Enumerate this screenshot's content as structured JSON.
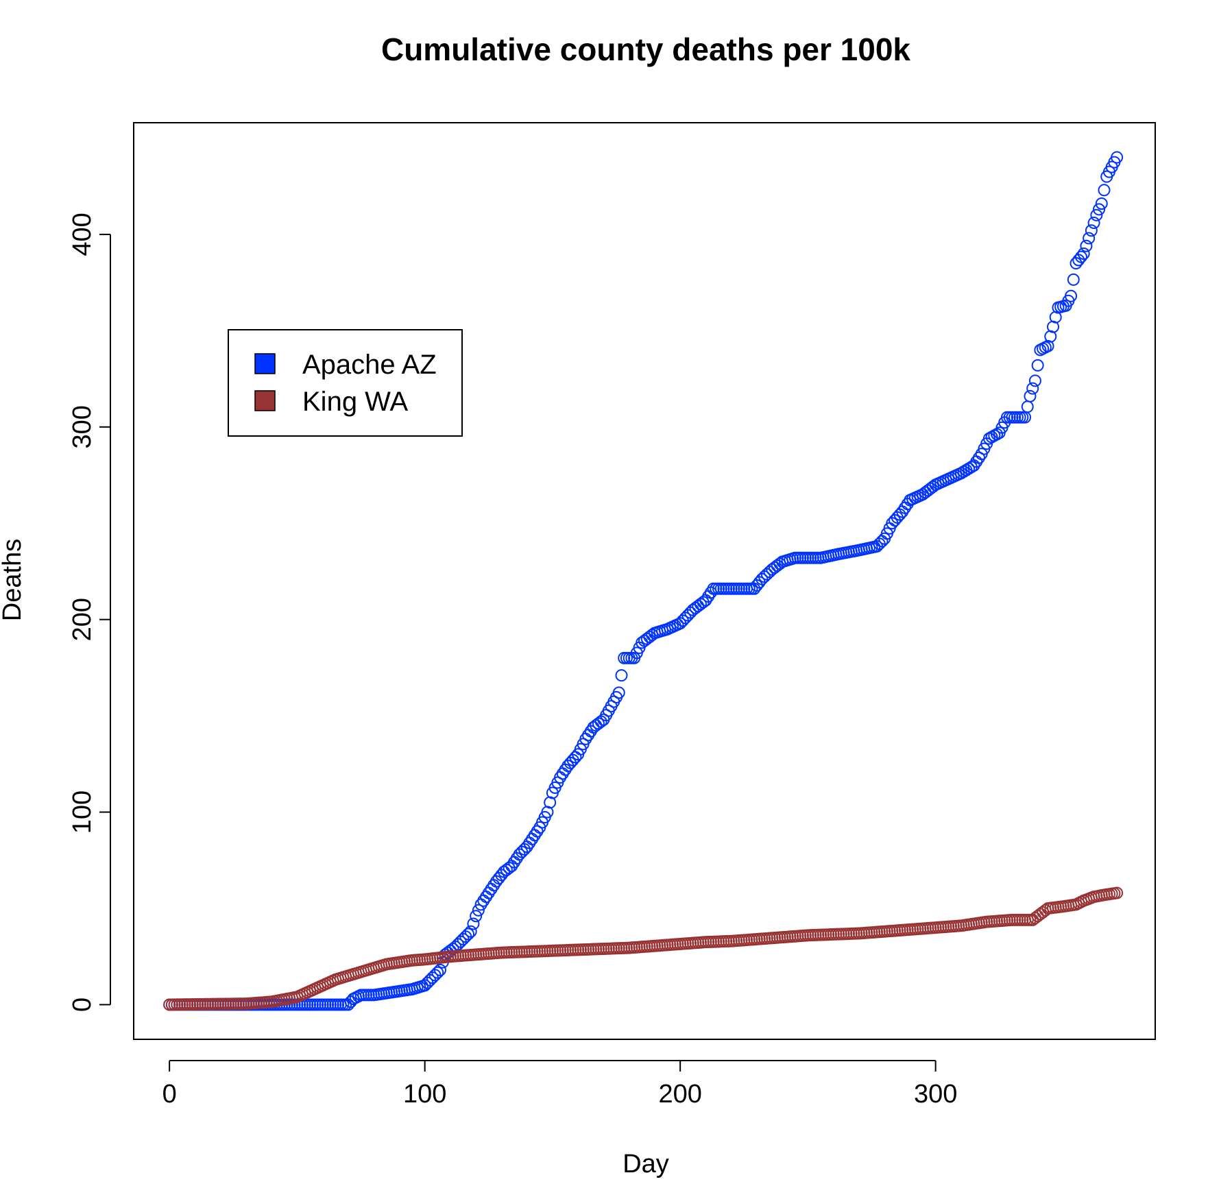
{
  "chart_data": {
    "type": "scatter",
    "title": "Cumulative county deaths per 100k",
    "xlabel": "Day",
    "ylabel": "Deaths",
    "xlim": [
      -14,
      386
    ],
    "ylim": [
      -18,
      458
    ],
    "xticks": [
      0,
      100,
      200,
      300
    ],
    "yticks": [
      0,
      100,
      200,
      300,
      400
    ],
    "grid": false,
    "legend_position": "upper-left",
    "series": [
      {
        "name": "Apache AZ",
        "color": "#0033ff",
        "points": [
          [
            0,
            0
          ],
          [
            70,
            0
          ],
          [
            72,
            3
          ],
          [
            75,
            5
          ],
          [
            80,
            5
          ],
          [
            85,
            6
          ],
          [
            90,
            7
          ],
          [
            95,
            8
          ],
          [
            100,
            10
          ],
          [
            103,
            14
          ],
          [
            106,
            18
          ],
          [
            108,
            26
          ],
          [
            112,
            30
          ],
          [
            115,
            34
          ],
          [
            118,
            38
          ],
          [
            120,
            46
          ],
          [
            122,
            52
          ],
          [
            125,
            58
          ],
          [
            128,
            64
          ],
          [
            131,
            69
          ],
          [
            134,
            72
          ],
          [
            137,
            78
          ],
          [
            140,
            82
          ],
          [
            143,
            88
          ],
          [
            145,
            92
          ],
          [
            148,
            100
          ],
          [
            150,
            110
          ],
          [
            153,
            118
          ],
          [
            156,
            124
          ],
          [
            160,
            130
          ],
          [
            163,
            138
          ],
          [
            166,
            144
          ],
          [
            170,
            148
          ],
          [
            173,
            155
          ],
          [
            176,
            162
          ],
          [
            178,
            180
          ],
          [
            182,
            180
          ],
          [
            185,
            188
          ],
          [
            190,
            193
          ],
          [
            195,
            195
          ],
          [
            200,
            198
          ],
          [
            205,
            205
          ],
          [
            210,
            210
          ],
          [
            213,
            216
          ],
          [
            220,
            216
          ],
          [
            229,
            216
          ],
          [
            232,
            221
          ],
          [
            236,
            226
          ],
          [
            240,
            230
          ],
          [
            245,
            232
          ],
          [
            255,
            232
          ],
          [
            262,
            234
          ],
          [
            270,
            236
          ],
          [
            277,
            238
          ],
          [
            280,
            242
          ],
          [
            283,
            250
          ],
          [
            287,
            256
          ],
          [
            290,
            262
          ],
          [
            295,
            265
          ],
          [
            300,
            270
          ],
          [
            305,
            273
          ],
          [
            310,
            276
          ],
          [
            315,
            280
          ],
          [
            318,
            286
          ],
          [
            321,
            294
          ],
          [
            325,
            297
          ],
          [
            328,
            305
          ],
          [
            335,
            305
          ],
          [
            337,
            316
          ],
          [
            339,
            324
          ],
          [
            341,
            340
          ],
          [
            344,
            342
          ],
          [
            346,
            352
          ],
          [
            348,
            362
          ],
          [
            351,
            363
          ],
          [
            353,
            368
          ],
          [
            355,
            385
          ],
          [
            358,
            390
          ],
          [
            361,
            402
          ],
          [
            363,
            410
          ],
          [
            365,
            416
          ],
          [
            367,
            430
          ],
          [
            369,
            435
          ],
          [
            371,
            440
          ]
        ]
      },
      {
        "name": "King WA",
        "color": "#993333",
        "points": [
          [
            0,
            0
          ],
          [
            30,
            0.5
          ],
          [
            40,
            1.5
          ],
          [
            50,
            4
          ],
          [
            55,
            7
          ],
          [
            60,
            10
          ],
          [
            65,
            13
          ],
          [
            70,
            15
          ],
          [
            75,
            17
          ],
          [
            80,
            19
          ],
          [
            85,
            21
          ],
          [
            90,
            22
          ],
          [
            95,
            23
          ],
          [
            100,
            23.5
          ],
          [
            110,
            25
          ],
          [
            120,
            26
          ],
          [
            130,
            27
          ],
          [
            140,
            27.5
          ],
          [
            150,
            28
          ],
          [
            160,
            28.5
          ],
          [
            170,
            29
          ],
          [
            180,
            29.5
          ],
          [
            190,
            30.5
          ],
          [
            200,
            31.5
          ],
          [
            210,
            32.5
          ],
          [
            220,
            33
          ],
          [
            230,
            34
          ],
          [
            240,
            35
          ],
          [
            250,
            36
          ],
          [
            260,
            36.5
          ],
          [
            270,
            37
          ],
          [
            280,
            38
          ],
          [
            290,
            39
          ],
          [
            300,
            40
          ],
          [
            310,
            41
          ],
          [
            320,
            43
          ],
          [
            330,
            44
          ],
          [
            338,
            44
          ],
          [
            341,
            47
          ],
          [
            344,
            50
          ],
          [
            350,
            51
          ],
          [
            355,
            52
          ],
          [
            358,
            54
          ],
          [
            362,
            56
          ],
          [
            366,
            57
          ],
          [
            371,
            58
          ]
        ]
      }
    ]
  }
}
